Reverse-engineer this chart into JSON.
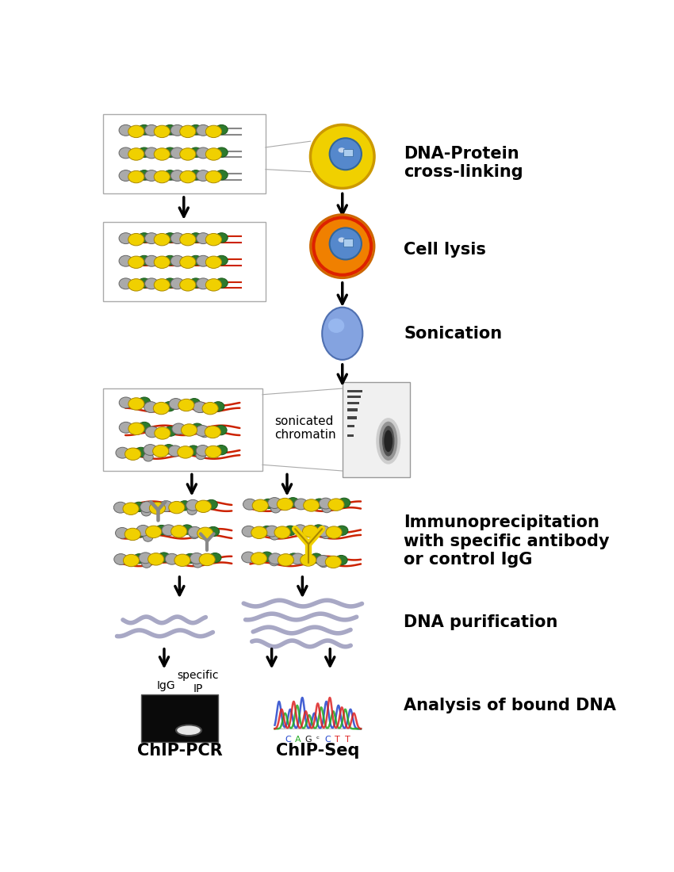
{
  "background_color": "#ffffff",
  "labels": {
    "step1": "DNA-Protein\ncross-linking",
    "step2": "Cell lysis",
    "step3": "Sonication",
    "step4": "sonicated\nchromatin",
    "step5": "Immunoprecipitation\nwith specific antibody\nor control IgG",
    "step6": "DNA purification",
    "step7": "Analysis of bound DNA",
    "chip_pcr": "ChIP-PCR",
    "chip_seq": "ChIP-Seq",
    "igg": "IgG",
    "specific_ip": "specific\nIP"
  },
  "label_fontsize": 15,
  "figsize": [
    8.5,
    11.0
  ],
  "dpi": 100,
  "green": "#2d7a2d",
  "yellow": "#f0d000",
  "gray": "#aaaaaa",
  "red_dna": "#cc2200",
  "dark_gray": "#888888"
}
